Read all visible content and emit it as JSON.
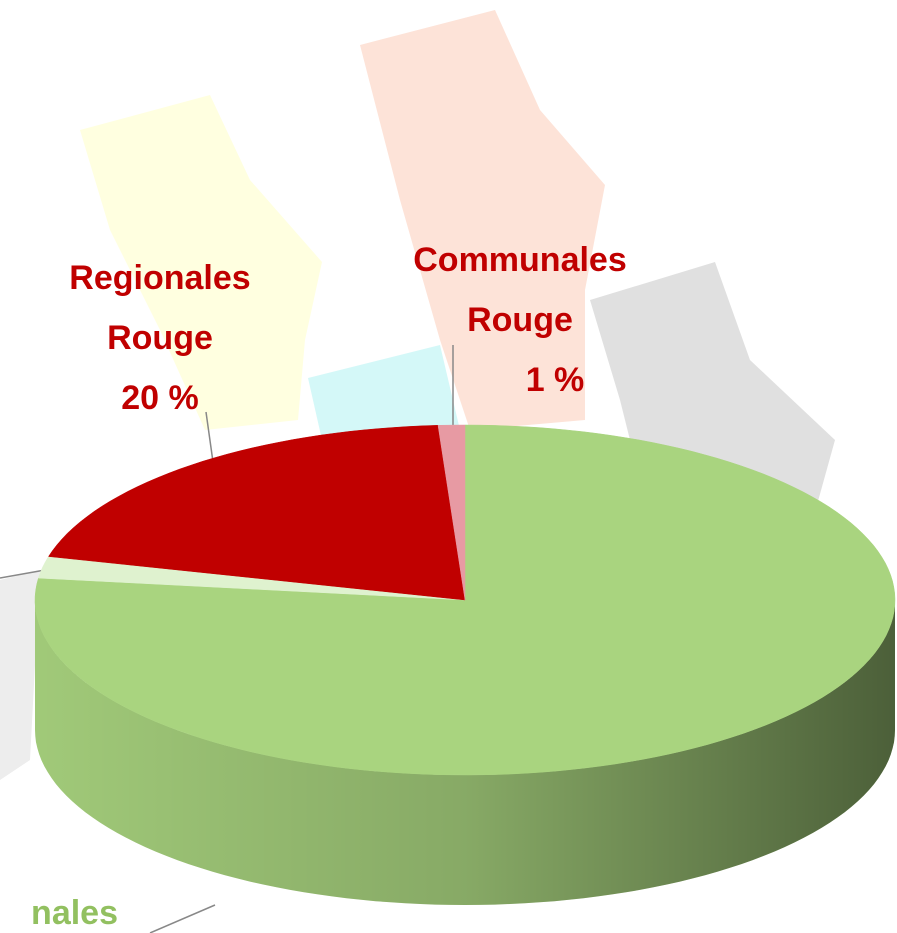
{
  "chart_data": {
    "type": "pie",
    "categories": [
      null,
      null,
      "Regionales Rouge",
      "Communales Rouge"
    ],
    "values": [
      77,
      2,
      20,
      1
    ],
    "value_labels": [
      null,
      null,
      "20 %",
      "1 %"
    ],
    "colors": [
      "#a9d47f",
      "#dff2cf",
      "#c00000",
      "#e79aa3"
    ],
    "outside_label": "nales"
  }
}
